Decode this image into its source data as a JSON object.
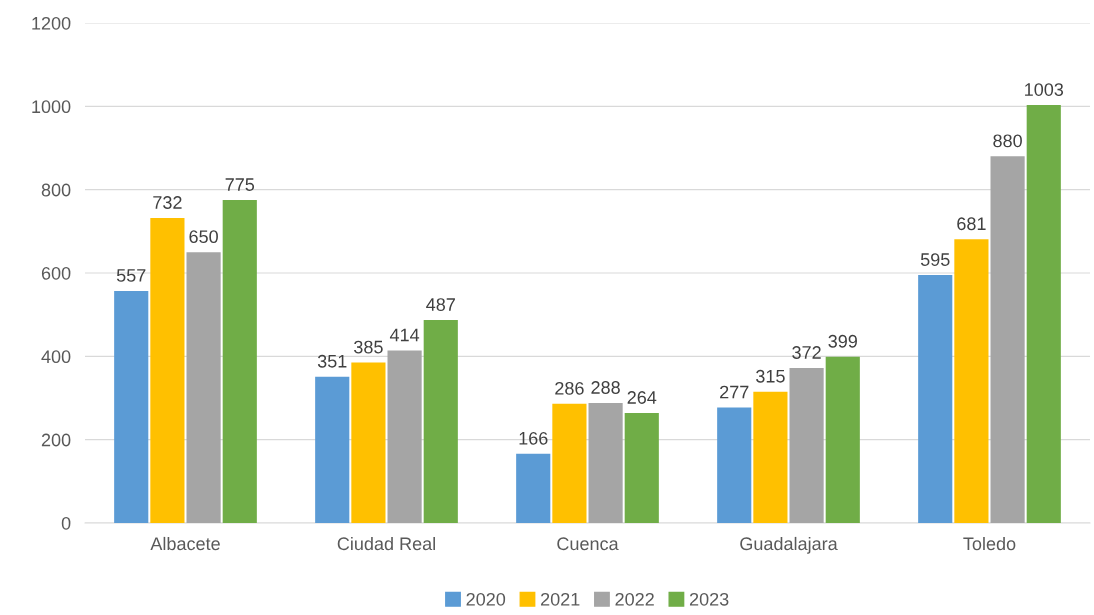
{
  "chart_data": {
    "type": "bar",
    "categories": [
      "Albacete",
      "Ciudad Real",
      "Cuenca",
      "Guadalajara",
      "Toledo"
    ],
    "series": [
      {
        "name": "2020",
        "color": "#5b9bd5",
        "values": [
          557,
          351,
          166,
          277,
          595
        ]
      },
      {
        "name": "2021",
        "color": "#ffc000",
        "values": [
          732,
          385,
          286,
          315,
          681
        ]
      },
      {
        "name": "2022",
        "color": "#a5a5a5",
        "values": [
          650,
          414,
          288,
          372,
          880
        ]
      },
      {
        "name": "2023",
        "color": "#70ad47",
        "values": [
          775,
          487,
          264,
          399,
          1003
        ]
      }
    ],
    "ylim": [
      0,
      1200
    ],
    "yticks": [
      0,
      200,
      400,
      600,
      800,
      1000,
      1200
    ],
    "grid": "y",
    "legend": "bottom",
    "data_labels": true
  }
}
